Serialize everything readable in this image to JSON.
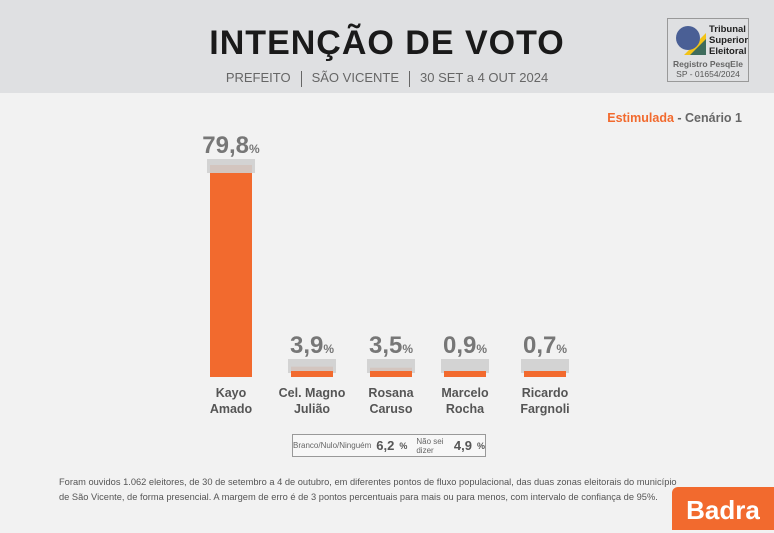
{
  "header": {
    "title": "INTENÇÃO DE VOTO",
    "office": "PREFEITO",
    "city": "SÃO VICENTE",
    "period": "30 SET a 4 OUT 2024"
  },
  "tse": {
    "name_line1": "Tribunal",
    "name_line2": "Superior",
    "name_line3": "Eleitoral",
    "registro": "Registro PesqEle",
    "numero": "SP - 01654/2024"
  },
  "scenario": {
    "type": "Estimulada",
    "sep": " - ",
    "name": "Cenário 1"
  },
  "chart_data": {
    "type": "bar",
    "title": "Intenção de voto - Estimulada - Cenário 1",
    "categories": [
      "Kayo Amado",
      "Cel. Magno Julião",
      "Rosana Caruso",
      "Marcelo Rocha",
      "Ricardo Fargnoli"
    ],
    "category_lines": [
      [
        "Kayo",
        "Amado"
      ],
      [
        "Cel. Magno",
        "Julião"
      ],
      [
        "Rosana",
        "Caruso"
      ],
      [
        "Marcelo",
        "Rocha"
      ],
      [
        "Ricardo",
        "Fargnoli"
      ]
    ],
    "values": [
      79.8,
      3.9,
      3.5,
      0.9,
      0.7
    ],
    "labels": [
      "79,8",
      "3,9",
      "3,5",
      "0,9",
      "0,7"
    ],
    "unit": "%",
    "ylim": [
      0,
      80
    ],
    "colors": {
      "bar": "#f26a2e",
      "cap": "#cfcfcf",
      "value": "#777777"
    }
  },
  "legend": {
    "blank_label": "Branco/Nulo/Ninguém",
    "blank_value": "6,2",
    "dk_label": "Não sei dizer",
    "dk_value": "4,9",
    "unit": "%"
  },
  "note": "Foram ouvidos 1.062 eleitores, de 30 de setembro a 4 de outubro, em diferentes pontos de fluxo populacional, das duas zonas eleitorais do município de São Vicente, de forma presencial. A margem de erro é de 3 pontos percentuais para mais ou para menos, com intervalo de confiança de 95%.",
  "brand": "Badra"
}
